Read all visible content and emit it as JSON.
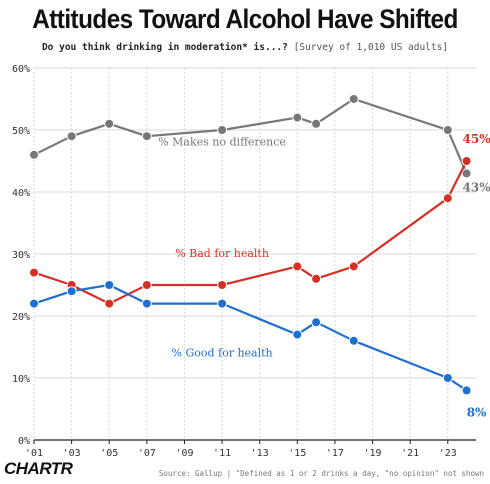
{
  "header": {
    "title": "Attitudes Toward Alcohol Have Shifted",
    "question": "Do you think drinking in moderation* is...?",
    "survey_note": "[Survey of 1,010 US adults]"
  },
  "footer": {
    "logo": "CHARTR",
    "source": "Source: Gallup | \"Defined as 1 or 2 drinks a day, \"no opinion\" not shown"
  },
  "chart_data": {
    "type": "line",
    "title": "Attitudes Toward Alcohol Have Shifted",
    "subtitle": "Do you think drinking in moderation* is...? [Survey of 1,010 US adults]",
    "xlabel": "",
    "ylabel": "",
    "xlim": [
      2001,
      2024.5
    ],
    "ylim": [
      0,
      60
    ],
    "grid": true,
    "x_ticks": [
      2001,
      2003,
      2005,
      2007,
      2009,
      2011,
      2013,
      2015,
      2017,
      2019,
      2021,
      2023
    ],
    "x_tick_labels": [
      "'01",
      "'03",
      "'05",
      "'07",
      "'09",
      "'11",
      "'13",
      "'15",
      "'17",
      "'19",
      "'21",
      "'23"
    ],
    "y_ticks": [
      0,
      10,
      20,
      30,
      40,
      50,
      60
    ],
    "y_tick_labels": [
      "0%",
      "10%",
      "20%",
      "30%",
      "40%",
      "50%",
      "60%"
    ],
    "series": [
      {
        "name": "% Makes no difference",
        "color": "#777777",
        "x": [
          2001,
          2003,
          2005,
          2007,
          2011,
          2015,
          2016,
          2018,
          2023,
          2024
        ],
        "values": [
          46,
          49,
          51,
          49,
          50,
          52,
          51,
          55,
          50,
          43
        ],
        "end_label": "43%"
      },
      {
        "name": "% Bad for health",
        "color": "#d63026",
        "x": [
          2001,
          2003,
          2005,
          2007,
          2011,
          2015,
          2016,
          2018,
          2023,
          2024
        ],
        "values": [
          27,
          25,
          22,
          25,
          25,
          28,
          26,
          28,
          39,
          45
        ],
        "end_label": "45%"
      },
      {
        "name": "% Good for health",
        "color": "#1f6fd1",
        "x": [
          2001,
          2003,
          2005,
          2007,
          2011,
          2015,
          2016,
          2018,
          2023,
          2024
        ],
        "values": [
          22,
          24,
          25,
          22,
          22,
          17,
          19,
          16,
          10,
          8
        ],
        "end_label": "8%"
      }
    ]
  }
}
